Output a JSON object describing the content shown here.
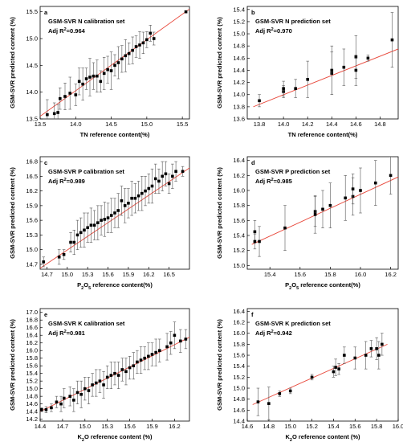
{
  "colors": {
    "fit_line": "#e8473a",
    "marker": "#000000",
    "error_bar": "#555555",
    "axes": "#000000"
  },
  "chart_data": [
    {
      "type": "scatter",
      "panel": "a",
      "title": "GSM-SVR N calibration set",
      "r2_prefix": "Adj R",
      "r2_sup": "2",
      "r2_value": "=0.964",
      "xlabel": "TN reference content(%)",
      "ylabel": "GSM-SVR predicted content (%)",
      "xlim": [
        13.5,
        15.6
      ],
      "ylim": [
        13.5,
        15.6
      ],
      "xticks": [
        "13.5",
        "14.0",
        "14.5",
        "15.0",
        "15.5"
      ],
      "yticks": [
        "13.5",
        "14.0",
        "14.5",
        "15.0",
        "15.5"
      ],
      "fit": [
        [
          13.5,
          13.55
        ],
        [
          15.6,
          15.55
        ]
      ],
      "points": [
        {
          "x": 13.6,
          "y": 13.58,
          "err": 0.28
        },
        {
          "x": 13.7,
          "y": 13.6,
          "err": 0.2
        },
        {
          "x": 13.75,
          "y": 13.62,
          "err": 0.15
        },
        {
          "x": 13.78,
          "y": 13.88,
          "err": 0.2
        },
        {
          "x": 13.85,
          "y": 13.92,
          "err": 0.25
        },
        {
          "x": 13.92,
          "y": 13.98,
          "err": 0.3
        },
        {
          "x": 14.0,
          "y": 13.95,
          "err": 0.2
        },
        {
          "x": 14.05,
          "y": 14.2,
          "err": 0.25
        },
        {
          "x": 14.1,
          "y": 14.15,
          "err": 0.3
        },
        {
          "x": 14.15,
          "y": 14.25,
          "err": 0.2
        },
        {
          "x": 14.2,
          "y": 14.28,
          "err": 0.35
        },
        {
          "x": 14.25,
          "y": 14.3,
          "err": 0.25
        },
        {
          "x": 14.3,
          "y": 14.3,
          "err": 0.3
        },
        {
          "x": 14.35,
          "y": 14.2,
          "err": 0.2
        },
        {
          "x": 14.4,
          "y": 14.35,
          "err": 0.3
        },
        {
          "x": 14.45,
          "y": 14.42,
          "err": 0.25
        },
        {
          "x": 14.5,
          "y": 14.4,
          "err": 0.35
        },
        {
          "x": 14.55,
          "y": 14.5,
          "err": 0.2
        },
        {
          "x": 14.6,
          "y": 14.55,
          "err": 0.3
        },
        {
          "x": 14.65,
          "y": 14.62,
          "err": 0.25
        },
        {
          "x": 14.7,
          "y": 14.68,
          "err": 0.3
        },
        {
          "x": 14.75,
          "y": 14.72,
          "err": 0.2
        },
        {
          "x": 14.8,
          "y": 14.78,
          "err": 0.25
        },
        {
          "x": 14.85,
          "y": 14.85,
          "err": 0.2
        },
        {
          "x": 14.9,
          "y": 14.88,
          "err": 0.25
        },
        {
          "x": 14.95,
          "y": 14.92,
          "err": 0.2
        },
        {
          "x": 15.0,
          "y": 14.98,
          "err": 0.15
        },
        {
          "x": 15.05,
          "y": 15.1,
          "err": 0.15
        },
        {
          "x": 15.1,
          "y": 15.0,
          "err": 0.12
        },
        {
          "x": 15.55,
          "y": 15.5,
          "err": 0.02
        }
      ]
    },
    {
      "type": "scatter",
      "panel": "b",
      "title": "GSM-SVR N prediction set",
      "r2_prefix": "Adj R",
      "r2_sup": "2",
      "r2_value": "=0.970",
      "xlabel": "TN reference content(%)",
      "ylabel": "GSM-SVR predicted content (%)",
      "xlim": [
        13.7,
        14.95
      ],
      "ylim": [
        13.6,
        15.45
      ],
      "xticks": [
        "13.8",
        "14.0",
        "14.2",
        "14.4",
        "14.6",
        "14.8"
      ],
      "yticks": [
        "13.6",
        "13.8",
        "14.0",
        "14.2",
        "14.4",
        "14.6",
        "14.8",
        "15.0",
        "15.2",
        "15.4"
      ],
      "fit": [
        [
          13.75,
          13.8
        ],
        [
          14.95,
          14.75
        ]
      ],
      "points": [
        {
          "x": 13.8,
          "y": 13.9,
          "err": 0.1
        },
        {
          "x": 14.0,
          "y": 14.05,
          "err": 0.1
        },
        {
          "x": 14.0,
          "y": 14.1,
          "err": 0.12
        },
        {
          "x": 14.1,
          "y": 14.1,
          "err": 0.15
        },
        {
          "x": 14.2,
          "y": 14.25,
          "err": 0.3
        },
        {
          "x": 14.4,
          "y": 14.35,
          "err": 0.35
        },
        {
          "x": 14.4,
          "y": 14.4,
          "err": 0.4
        },
        {
          "x": 14.5,
          "y": 14.45,
          "err": 0.3
        },
        {
          "x": 14.6,
          "y": 14.62,
          "err": 0.35
        },
        {
          "x": 14.6,
          "y": 14.4,
          "err": 0.25
        },
        {
          "x": 14.7,
          "y": 14.6,
          "err": 0.05
        },
        {
          "x": 14.9,
          "y": 14.9,
          "err": 0.45
        }
      ]
    },
    {
      "type": "scatter",
      "panel": "c",
      "title": "GSM-SVR P calibration set",
      "r2_prefix": "Adj R",
      "r2_sup": "2",
      "r2_value": "=0.989",
      "xlabel_parts": [
        "P",
        "2",
        "O",
        "5",
        " reference content(%)"
      ],
      "ylabel": "GSM-SVR predicted content (%)",
      "xlim": [
        14.6,
        16.8
      ],
      "ylim": [
        14.6,
        16.9
      ],
      "xticks": [
        "14.7",
        "15.0",
        "15.3",
        "15.6",
        "15.9",
        "16.2",
        "16.5"
      ],
      "yticks": [
        "14.7",
        "15.0",
        "15.3",
        "15.6",
        "15.9",
        "16.2",
        "16.5",
        "16.8"
      ],
      "fit": [
        [
          14.6,
          14.62
        ],
        [
          16.8,
          16.67
        ]
      ],
      "points": [
        {
          "x": 14.65,
          "y": 14.75,
          "err": 0.1
        },
        {
          "x": 14.88,
          "y": 14.85,
          "err": 0.15
        },
        {
          "x": 14.95,
          "y": 14.9,
          "err": 0.1
        },
        {
          "x": 15.05,
          "y": 15.15,
          "err": 0.2
        },
        {
          "x": 15.1,
          "y": 15.15,
          "err": 0.25
        },
        {
          "x": 15.15,
          "y": 15.3,
          "err": 0.3
        },
        {
          "x": 15.2,
          "y": 15.35,
          "err": 0.3
        },
        {
          "x": 15.25,
          "y": 15.4,
          "err": 0.35
        },
        {
          "x": 15.3,
          "y": 15.45,
          "err": 0.3
        },
        {
          "x": 15.35,
          "y": 15.5,
          "err": 0.35
        },
        {
          "x": 15.4,
          "y": 15.5,
          "err": 0.3
        },
        {
          "x": 15.45,
          "y": 15.55,
          "err": 0.35
        },
        {
          "x": 15.5,
          "y": 15.6,
          "err": 0.3
        },
        {
          "x": 15.55,
          "y": 15.62,
          "err": 0.35
        },
        {
          "x": 15.6,
          "y": 15.65,
          "err": 0.3
        },
        {
          "x": 15.65,
          "y": 15.7,
          "err": 0.35
        },
        {
          "x": 15.7,
          "y": 15.75,
          "err": 0.3
        },
        {
          "x": 15.75,
          "y": 15.8,
          "err": 0.35
        },
        {
          "x": 15.8,
          "y": 16.0,
          "err": 0.3
        },
        {
          "x": 15.85,
          "y": 15.9,
          "err": 0.35
        },
        {
          "x": 15.9,
          "y": 15.95,
          "err": 0.3
        },
        {
          "x": 15.95,
          "y": 16.05,
          "err": 0.35
        },
        {
          "x": 16.0,
          "y": 16.05,
          "err": 0.3
        },
        {
          "x": 16.05,
          "y": 16.1,
          "err": 0.3
        },
        {
          "x": 16.1,
          "y": 16.15,
          "err": 0.35
        },
        {
          "x": 16.15,
          "y": 16.2,
          "err": 0.3
        },
        {
          "x": 16.2,
          "y": 16.25,
          "err": 0.3
        },
        {
          "x": 16.25,
          "y": 16.3,
          "err": 0.35
        },
        {
          "x": 16.3,
          "y": 16.45,
          "err": 0.3
        },
        {
          "x": 16.35,
          "y": 16.4,
          "err": 0.25
        },
        {
          "x": 16.4,
          "y": 16.5,
          "err": 0.3
        },
        {
          "x": 16.45,
          "y": 16.55,
          "err": 0.25
        },
        {
          "x": 16.5,
          "y": 16.35,
          "err": 0.2
        },
        {
          "x": 16.55,
          "y": 16.5,
          "err": 0.25
        },
        {
          "x": 16.6,
          "y": 16.6,
          "err": 0.2
        },
        {
          "x": 16.7,
          "y": 16.6,
          "err": 0.1
        }
      ]
    },
    {
      "type": "scatter",
      "panel": "d",
      "title": "GSM-SVR P prediction set",
      "r2_prefix": "Adj R",
      "r2_sup": "2",
      "r2_value": "=0.985",
      "xlabel_parts": [
        "P",
        "2",
        "O",
        "5",
        " reference content(%)"
      ],
      "ylabel": "GSM-SVR predicted content (%)",
      "xlim": [
        15.25,
        16.25
      ],
      "ylim": [
        14.95,
        16.45
      ],
      "xticks": [
        "15.4",
        "15.6",
        "15.8",
        "16.0",
        "16.2"
      ],
      "yticks": [
        "15.0",
        "15.2",
        "15.4",
        "15.6",
        "15.8",
        "16.0",
        "16.2",
        "16.4"
      ],
      "fit": [
        [
          15.28,
          15.28
        ],
        [
          16.25,
          16.18
        ]
      ],
      "points": [
        {
          "x": 15.3,
          "y": 15.45,
          "err": 0.15
        },
        {
          "x": 15.3,
          "y": 15.32,
          "err": 0.1
        },
        {
          "x": 15.33,
          "y": 15.32,
          "err": 0.2
        },
        {
          "x": 15.5,
          "y": 15.5,
          "err": 0.3
        },
        {
          "x": 15.7,
          "y": 15.72,
          "err": 0.2
        },
        {
          "x": 15.7,
          "y": 15.68,
          "err": 0.25
        },
        {
          "x": 15.75,
          "y": 15.75,
          "err": 0.25
        },
        {
          "x": 15.8,
          "y": 15.8,
          "err": 0.3
        },
        {
          "x": 15.9,
          "y": 15.9,
          "err": 0.3
        },
        {
          "x": 15.95,
          "y": 15.92,
          "err": 0.25
        },
        {
          "x": 15.95,
          "y": 16.02,
          "err": 0.2
        },
        {
          "x": 16.0,
          "y": 16.0,
          "err": 0.3
        },
        {
          "x": 16.1,
          "y": 16.1,
          "err": 0.3
        },
        {
          "x": 16.2,
          "y": 16.2,
          "err": 0.25
        }
      ]
    },
    {
      "type": "scatter",
      "panel": "e",
      "title": "GSM-SVR K calibration set",
      "r2_prefix": "Adj R",
      "r2_sup": "2",
      "r2_value": "=0.981",
      "xlabel_parts": [
        "K",
        "2",
        "O reference content (%)"
      ],
      "ylabel": "GSM-SVR predicted content (%)",
      "xlim": [
        14.4,
        16.4
      ],
      "ylim": [
        14.15,
        17.1
      ],
      "xticks": [
        "14.4",
        "14.7",
        "15.0",
        "15.3",
        "15.6",
        "15.9",
        "16.2"
      ],
      "yticks": [
        "14.2",
        "14.4",
        "14.6",
        "14.8",
        "15.0",
        "15.2",
        "15.4",
        "15.6",
        "15.8",
        "16.0",
        "16.2",
        "16.4",
        "16.6",
        "16.8",
        "17.0"
      ],
      "fit": [
        [
          14.4,
          14.4
        ],
        [
          16.4,
          16.35
        ]
      ],
      "points": [
        {
          "x": 14.42,
          "y": 14.45,
          "err": 0.05
        },
        {
          "x": 14.48,
          "y": 14.45,
          "err": 0.08
        },
        {
          "x": 14.55,
          "y": 14.5,
          "err": 0.1
        },
        {
          "x": 14.62,
          "y": 14.65,
          "err": 0.15
        },
        {
          "x": 14.68,
          "y": 14.6,
          "err": 0.2
        },
        {
          "x": 14.72,
          "y": 14.75,
          "err": 0.25
        },
        {
          "x": 14.8,
          "y": 14.8,
          "err": 0.25
        },
        {
          "x": 14.85,
          "y": 14.7,
          "err": 0.3
        },
        {
          "x": 14.9,
          "y": 14.9,
          "err": 0.3
        },
        {
          "x": 14.95,
          "y": 14.85,
          "err": 0.35
        },
        {
          "x": 15.0,
          "y": 15.0,
          "err": 0.3
        },
        {
          "x": 15.05,
          "y": 14.95,
          "err": 0.35
        },
        {
          "x": 15.1,
          "y": 15.1,
          "err": 0.3
        },
        {
          "x": 15.15,
          "y": 15.15,
          "err": 0.35
        },
        {
          "x": 15.2,
          "y": 15.2,
          "err": 0.3
        },
        {
          "x": 15.25,
          "y": 15.1,
          "err": 0.35
        },
        {
          "x": 15.3,
          "y": 15.3,
          "err": 0.3
        },
        {
          "x": 15.35,
          "y": 15.35,
          "err": 0.35
        },
        {
          "x": 15.4,
          "y": 15.4,
          "err": 0.3
        },
        {
          "x": 15.45,
          "y": 15.35,
          "err": 0.35
        },
        {
          "x": 15.5,
          "y": 15.5,
          "err": 0.3
        },
        {
          "x": 15.55,
          "y": 15.45,
          "err": 0.35
        },
        {
          "x": 15.6,
          "y": 15.55,
          "err": 0.3
        },
        {
          "x": 15.65,
          "y": 15.6,
          "err": 0.35
        },
        {
          "x": 15.7,
          "y": 15.7,
          "err": 0.3
        },
        {
          "x": 15.75,
          "y": 15.75,
          "err": 0.35
        },
        {
          "x": 15.8,
          "y": 15.8,
          "err": 0.3
        },
        {
          "x": 15.85,
          "y": 15.85,
          "err": 0.35
        },
        {
          "x": 15.9,
          "y": 15.9,
          "err": 0.3
        },
        {
          "x": 15.95,
          "y": 15.95,
          "err": 0.35
        },
        {
          "x": 16.0,
          "y": 16.0,
          "err": 0.3
        },
        {
          "x": 16.1,
          "y": 16.1,
          "err": 0.35
        },
        {
          "x": 16.15,
          "y": 16.2,
          "err": 0.3
        },
        {
          "x": 16.2,
          "y": 16.4,
          "err": 0.35
        },
        {
          "x": 16.28,
          "y": 16.25,
          "err": 0.3
        },
        {
          "x": 16.35,
          "y": 16.3,
          "err": 0.25
        }
      ]
    },
    {
      "type": "scatter",
      "panel": "f",
      "title": "GSM-SVR K prediction set",
      "r2_prefix": "Adj R",
      "r2_sup": "2",
      "r2_value": "=0.942",
      "xlabel_parts": [
        "K",
        "2",
        "O reference content (%)"
      ],
      "ylabel": "GSM-SVR predicted content (%)",
      "xlim": [
        14.6,
        16.0
      ],
      "ylim": [
        14.4,
        16.45
      ],
      "xticks": [
        "14.6",
        "14.8",
        "15.0",
        "15.2",
        "15.4",
        "15.6",
        "15.8",
        "16.0"
      ],
      "yticks": [
        "14.4",
        "14.6",
        "14.8",
        "15.0",
        "15.2",
        "15.4",
        "15.6",
        "15.8",
        "16.0",
        "16.2",
        "16.4"
      ],
      "fit": [
        [
          14.65,
          14.7
        ],
        [
          15.9,
          15.8
        ]
      ],
      "points": [
        {
          "x": 14.7,
          "y": 14.75,
          "err": 0.25
        },
        {
          "x": 14.8,
          "y": 14.72,
          "err": 0.3
        },
        {
          "x": 14.9,
          "y": 14.9,
          "err": 0.05
        },
        {
          "x": 15.0,
          "y": 14.95,
          "err": 0.05
        },
        {
          "x": 15.2,
          "y": 15.2,
          "err": 0.05
        },
        {
          "x": 15.4,
          "y": 15.3,
          "err": 0.1
        },
        {
          "x": 15.42,
          "y": 15.38,
          "err": 0.15
        },
        {
          "x": 15.45,
          "y": 15.35,
          "err": 0.1
        },
        {
          "x": 15.5,
          "y": 15.6,
          "err": 0.15
        },
        {
          "x": 15.6,
          "y": 15.55,
          "err": 0.2
        },
        {
          "x": 15.7,
          "y": 15.6,
          "err": 0.25
        },
        {
          "x": 15.75,
          "y": 15.72,
          "err": 0.15
        },
        {
          "x": 15.8,
          "y": 15.72,
          "err": 0.2
        },
        {
          "x": 15.82,
          "y": 15.6,
          "err": 0.25
        },
        {
          "x": 15.85,
          "y": 15.8,
          "err": 0.2
        }
      ]
    }
  ]
}
